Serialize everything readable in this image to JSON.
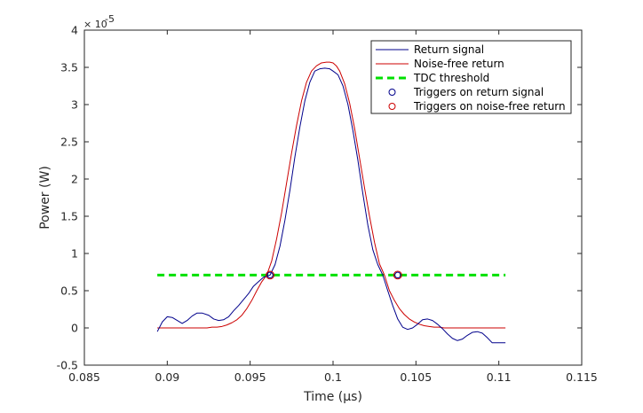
{
  "chart_data": {
    "type": "line",
    "xlabel": "Time (µs)",
    "ylabel": "Power (W)",
    "xlim": [
      0.085,
      0.115
    ],
    "ylim": [
      -0.5,
      4
    ],
    "y_multiplier_label": "× 10-5",
    "y_multiplier_base": "× 10",
    "y_multiplier_exp": "-5",
    "xticks": [
      0.085,
      0.09,
      0.095,
      0.1,
      0.105,
      0.11,
      0.115
    ],
    "xtick_labels": [
      "0.085",
      "0.09",
      "0.095",
      "0.1",
      "0.105",
      "0.11",
      "0.115"
    ],
    "yticks": [
      -0.5,
      0,
      0.5,
      1,
      1.5,
      2,
      2.5,
      3,
      3.5,
      4
    ],
    "ytick_labels": [
      "-0.5",
      "0",
      "0.5",
      "1",
      "1.5",
      "2",
      "2.5",
      "3",
      "3.5",
      "4"
    ],
    "grid": false,
    "legend_position": "top-right",
    "series": [
      {
        "name": "Return signal",
        "color": "#00008b",
        "style": "solid",
        "x": [
          0.0894,
          0.0897,
          0.09,
          0.0903,
          0.0906,
          0.0909,
          0.0912,
          0.0915,
          0.0918,
          0.0921,
          0.0925,
          0.0928,
          0.0931,
          0.0934,
          0.0937,
          0.094,
          0.0943,
          0.0946,
          0.0949,
          0.0952,
          0.0955,
          0.0958,
          0.0962,
          0.0965,
          0.0968,
          0.0971,
          0.0974,
          0.0977,
          0.098,
          0.0983,
          0.0986,
          0.0989,
          0.0992,
          0.0995,
          0.0998,
          0.1,
          0.1003,
          0.1006,
          0.1009,
          0.1012,
          0.1015,
          0.1018,
          0.1021,
          0.1024,
          0.1027,
          0.103,
          0.1033,
          0.1036,
          0.1039,
          0.1042,
          0.1045,
          0.1048,
          0.1051,
          0.1054,
          0.1057,
          0.106,
          0.1063,
          0.1066,
          0.1069,
          0.1072,
          0.1075,
          0.1078,
          0.1081,
          0.1084,
          0.1087,
          0.109,
          0.1093,
          0.1096,
          0.1099,
          0.1104
        ],
        "y": [
          -0.05,
          0.08,
          0.15,
          0.14,
          0.1,
          0.06,
          0.1,
          0.16,
          0.2,
          0.2,
          0.17,
          0.12,
          0.1,
          0.11,
          0.15,
          0.23,
          0.3,
          0.38,
          0.46,
          0.56,
          0.62,
          0.68,
          0.71,
          0.85,
          1.1,
          1.45,
          1.85,
          2.3,
          2.7,
          3.05,
          3.3,
          3.45,
          3.48,
          3.49,
          3.48,
          3.45,
          3.4,
          3.25,
          3.0,
          2.65,
          2.25,
          1.8,
          1.38,
          1.05,
          0.85,
          0.71,
          0.5,
          0.3,
          0.12,
          0.01,
          -0.02,
          0.0,
          0.05,
          0.11,
          0.12,
          0.1,
          0.05,
          -0.01,
          -0.08,
          -0.14,
          -0.17,
          -0.15,
          -0.1,
          -0.06,
          -0.05,
          -0.07,
          -0.13,
          -0.2,
          -0.2,
          -0.2
        ]
      },
      {
        "name": "Noise-free return",
        "color": "#cc0000",
        "style": "solid",
        "x": [
          0.0894,
          0.09,
          0.0906,
          0.0912,
          0.0918,
          0.0921,
          0.0924,
          0.0927,
          0.093,
          0.0933,
          0.0936,
          0.0939,
          0.0942,
          0.0945,
          0.0948,
          0.0951,
          0.0954,
          0.0957,
          0.096,
          0.0963,
          0.0966,
          0.0969,
          0.0972,
          0.0975,
          0.0978,
          0.0981,
          0.0984,
          0.0987,
          0.099,
          0.0993,
          0.0996,
          0.0998,
          0.1,
          0.1002,
          0.1004,
          0.1007,
          0.101,
          0.1013,
          0.1016,
          0.1019,
          0.1022,
          0.1025,
          0.1028,
          0.1031,
          0.1034,
          0.1037,
          0.104,
          0.1043,
          0.1046,
          0.1049,
          0.1052,
          0.1055,
          0.1058,
          0.1061,
          0.1064,
          0.1067,
          0.107,
          0.1075,
          0.108,
          0.109,
          0.1104
        ],
        "y": [
          0.0,
          0.0,
          0.0,
          0.0,
          0.0,
          0.0,
          0.0,
          0.01,
          0.01,
          0.02,
          0.04,
          0.07,
          0.11,
          0.17,
          0.26,
          0.37,
          0.5,
          0.62,
          0.71,
          0.9,
          1.2,
          1.55,
          1.95,
          2.35,
          2.72,
          3.05,
          3.3,
          3.45,
          3.52,
          3.56,
          3.57,
          3.57,
          3.56,
          3.52,
          3.45,
          3.28,
          3.02,
          2.68,
          2.28,
          1.88,
          1.5,
          1.15,
          0.86,
          0.71,
          0.5,
          0.37,
          0.26,
          0.18,
          0.12,
          0.08,
          0.05,
          0.03,
          0.02,
          0.01,
          0.01,
          0.0,
          0.0,
          0.0,
          0.0,
          0.0,
          0.0
        ]
      },
      {
        "name": "TDC threshold",
        "color": "#00e000",
        "style": "dashed",
        "x": [
          0.0894,
          0.1104
        ],
        "y": [
          0.71,
          0.71
        ]
      },
      {
        "name": "Triggers on return signal",
        "color": "#00008b",
        "style": "marker",
        "marker": "circle",
        "x": [
          0.0962,
          0.1039
        ],
        "y": [
          0.71,
          0.71
        ]
      },
      {
        "name": "Triggers on noise-free return",
        "color": "#cc0000",
        "style": "marker",
        "marker": "circle",
        "x": [
          0.0962,
          0.1039
        ],
        "y": [
          0.71,
          0.71
        ]
      }
    ]
  }
}
